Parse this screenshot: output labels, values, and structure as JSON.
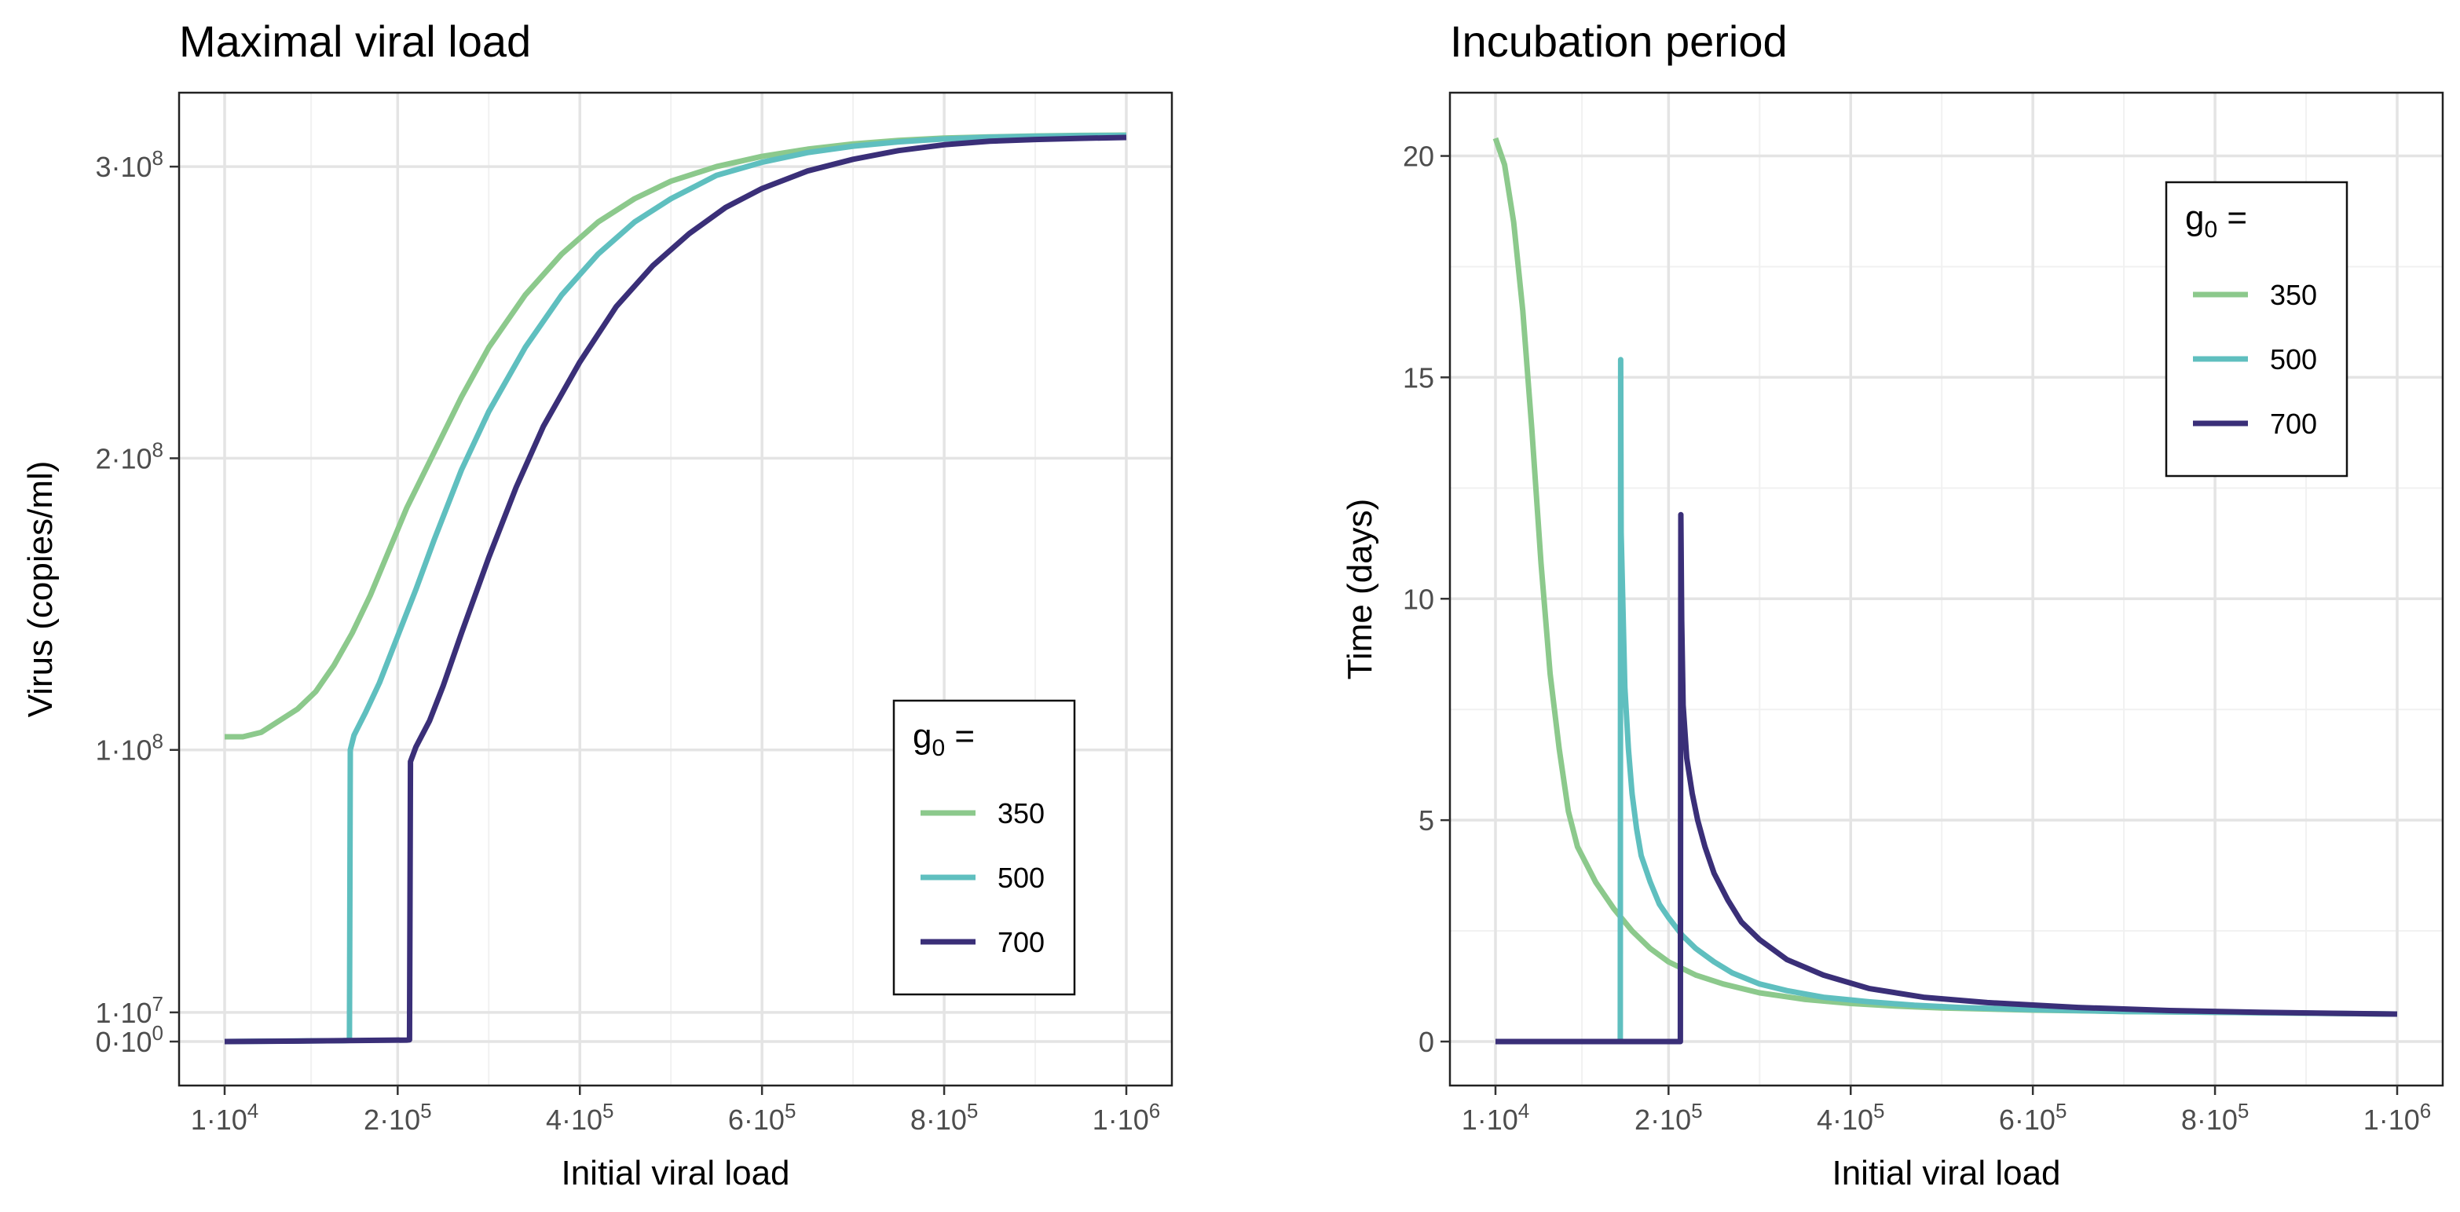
{
  "chart_data": [
    {
      "type": "line",
      "title": "Maximal viral load",
      "xlabel": "Initial viral load",
      "ylabel": "Virus (copies/ml)",
      "xlim": [
        10000,
        1000000
      ],
      "ylim": [
        0,
        310000000
      ],
      "grid": true,
      "legend": {
        "title_base": "g",
        "title_sub": "0",
        "title_suffix": " =",
        "placement": "bottom-right"
      },
      "x_ticks": [
        {
          "value": 10000,
          "mant": "1",
          "exp": "4"
        },
        {
          "value": 200000,
          "mant": "2",
          "exp": "5"
        },
        {
          "value": 400000,
          "mant": "4",
          "exp": "5"
        },
        {
          "value": 600000,
          "mant": "6",
          "exp": "5"
        },
        {
          "value": 800000,
          "mant": "8",
          "exp": "5"
        },
        {
          "value": 1000000,
          "mant": "1",
          "exp": "6"
        }
      ],
      "y_ticks": [
        {
          "value": 0,
          "mant": "0",
          "exp": "0"
        },
        {
          "value": 10000000,
          "mant": "1",
          "exp": "7"
        },
        {
          "value": 100000000,
          "mant": "1",
          "exp": "8"
        },
        {
          "value": 200000000,
          "mant": "2",
          "exp": "8"
        },
        {
          "value": 300000000,
          "mant": "3",
          "exp": "8"
        }
      ],
      "series": [
        {
          "name": "350",
          "color": "#8cc98c",
          "x": [
            10000,
            30000,
            50000,
            70000,
            90000,
            110000,
            130000,
            150000,
            170000,
            190000,
            210000,
            240000,
            270000,
            300000,
            340000,
            380000,
            420000,
            460000,
            500000,
            550000,
            600000,
            650000,
            700000,
            750000,
            800000,
            850000,
            900000,
            950000,
            1000000
          ],
          "y": [
            104500000,
            104500000,
            106000000,
            110000000,
            114000000,
            120000000,
            129000000,
            140000000,
            153000000,
            168000000,
            183000000,
            202000000,
            221000000,
            238000000,
            256000000,
            270000000,
            281000000,
            289000000,
            295000000,
            300000000,
            303500000,
            306000000,
            307800000,
            309000000,
            309800000,
            310200000,
            310500000,
            310700000,
            310800000
          ]
        },
        {
          "name": "500",
          "color": "#5fbfbf",
          "x": [
            10000,
            80000,
            140000,
            147000,
            148000,
            152000,
            165000,
            180000,
            200000,
            220000,
            240000,
            270000,
            300000,
            340000,
            380000,
            420000,
            460000,
            500000,
            550000,
            600000,
            650000,
            700000,
            750000,
            800000,
            850000,
            900000,
            950000,
            1000000
          ],
          "y": [
            0,
            150000,
            300000,
            400000,
            100000000,
            105000000,
            113000000,
            123000000,
            139000000,
            155000000,
            172000000,
            196000000,
            216000000,
            238000000,
            256000000,
            270000000,
            281000000,
            289000000,
            297000000,
            301500000,
            304800000,
            307000000,
            308500000,
            309500000,
            310100000,
            310400000,
            310600000,
            310700000
          ]
        },
        {
          "name": "700",
          "color": "#3a2f78",
          "x": [
            10000,
            100000,
            210000,
            213000,
            214000,
            220000,
            235000,
            250000,
            270000,
            300000,
            330000,
            360000,
            400000,
            440000,
            480000,
            520000,
            560000,
            600000,
            650000,
            700000,
            750000,
            800000,
            850000,
            900000,
            950000,
            1000000
          ],
          "y": [
            0,
            200000,
            500000,
            600000,
            96000000,
            101000000,
            110000000,
            122000000,
            140000000,
            166000000,
            190000000,
            211000000,
            233000000,
            252000000,
            266000000,
            277000000,
            286000000,
            292500000,
            298500000,
            302500000,
            305500000,
            307500000,
            308700000,
            309300000,
            309700000,
            310000000
          ]
        }
      ]
    },
    {
      "type": "line",
      "title": "Incubation period",
      "xlabel": "Initial viral load",
      "ylabel": "Time (days)",
      "xlim": [
        10000,
        1000000
      ],
      "ylim": [
        0,
        20.4
      ],
      "grid": true,
      "legend": {
        "title_base": "g",
        "title_sub": "0",
        "title_suffix": " =",
        "placement": "top-right"
      },
      "x_ticks": [
        {
          "value": 10000,
          "mant": "1",
          "exp": "4"
        },
        {
          "value": 200000,
          "mant": "2",
          "exp": "5"
        },
        {
          "value": 400000,
          "mant": "4",
          "exp": "5"
        },
        {
          "value": 600000,
          "mant": "6",
          "exp": "5"
        },
        {
          "value": 800000,
          "mant": "8",
          "exp": "5"
        },
        {
          "value": 1000000,
          "mant": "1",
          "exp": "6"
        }
      ],
      "y_ticks": [
        {
          "value": 0,
          "label": "0"
        },
        {
          "value": 5,
          "label": "5"
        },
        {
          "value": 10,
          "label": "10"
        },
        {
          "value": 15,
          "label": "15"
        },
        {
          "value": 20,
          "label": "20"
        }
      ],
      "series": [
        {
          "name": "350",
          "color": "#8cc98c",
          "x": [
            10000,
            20000,
            30000,
            40000,
            50000,
            60000,
            70000,
            80000,
            90000,
            100000,
            120000,
            140000,
            160000,
            180000,
            200000,
            230000,
            260000,
            300000,
            350000,
            400000,
            450000,
            500000,
            600000,
            700000,
            800000,
            900000,
            1000000
          ],
          "y": [
            20.4,
            19.8,
            18.5,
            16.5,
            13.8,
            10.8,
            8.3,
            6.6,
            5.2,
            4.4,
            3.6,
            3.0,
            2.5,
            2.1,
            1.8,
            1.5,
            1.3,
            1.1,
            0.95,
            0.86,
            0.8,
            0.76,
            0.71,
            0.68,
            0.66,
            0.64,
            0.62
          ]
        },
        {
          "name": "500",
          "color": "#5fbfbf",
          "x": [
            10000,
            100000,
            147000,
            147500,
            148000,
            152000,
            156000,
            160000,
            165000,
            170000,
            180000,
            190000,
            200000,
            215000,
            230000,
            250000,
            270000,
            300000,
            330000,
            370000,
            420000,
            470000,
            520000,
            600000,
            700000,
            800000,
            900000,
            1000000
          ],
          "y": [
            0,
            0,
            0,
            15.4,
            11.5,
            8.0,
            6.6,
            5.6,
            4.8,
            4.2,
            3.6,
            3.1,
            2.8,
            2.4,
            2.1,
            1.8,
            1.55,
            1.3,
            1.15,
            1.0,
            0.9,
            0.82,
            0.77,
            0.72,
            0.68,
            0.66,
            0.64,
            0.62
          ]
        },
        {
          "name": "700",
          "color": "#3a2f78",
          "x": [
            10000,
            150000,
            213000,
            213500,
            214500,
            216000,
            220000,
            226000,
            232000,
            240000,
            250000,
            265000,
            280000,
            300000,
            330000,
            370000,
            420000,
            480000,
            550000,
            650000,
            750000,
            850000,
            1000000
          ],
          "y": [
            0,
            0,
            0,
            11.9,
            9.5,
            7.6,
            6.4,
            5.6,
            5.0,
            4.4,
            3.8,
            3.2,
            2.7,
            2.3,
            1.85,
            1.5,
            1.2,
            1.0,
            0.88,
            0.77,
            0.7,
            0.66,
            0.62
          ]
        }
      ]
    }
  ]
}
